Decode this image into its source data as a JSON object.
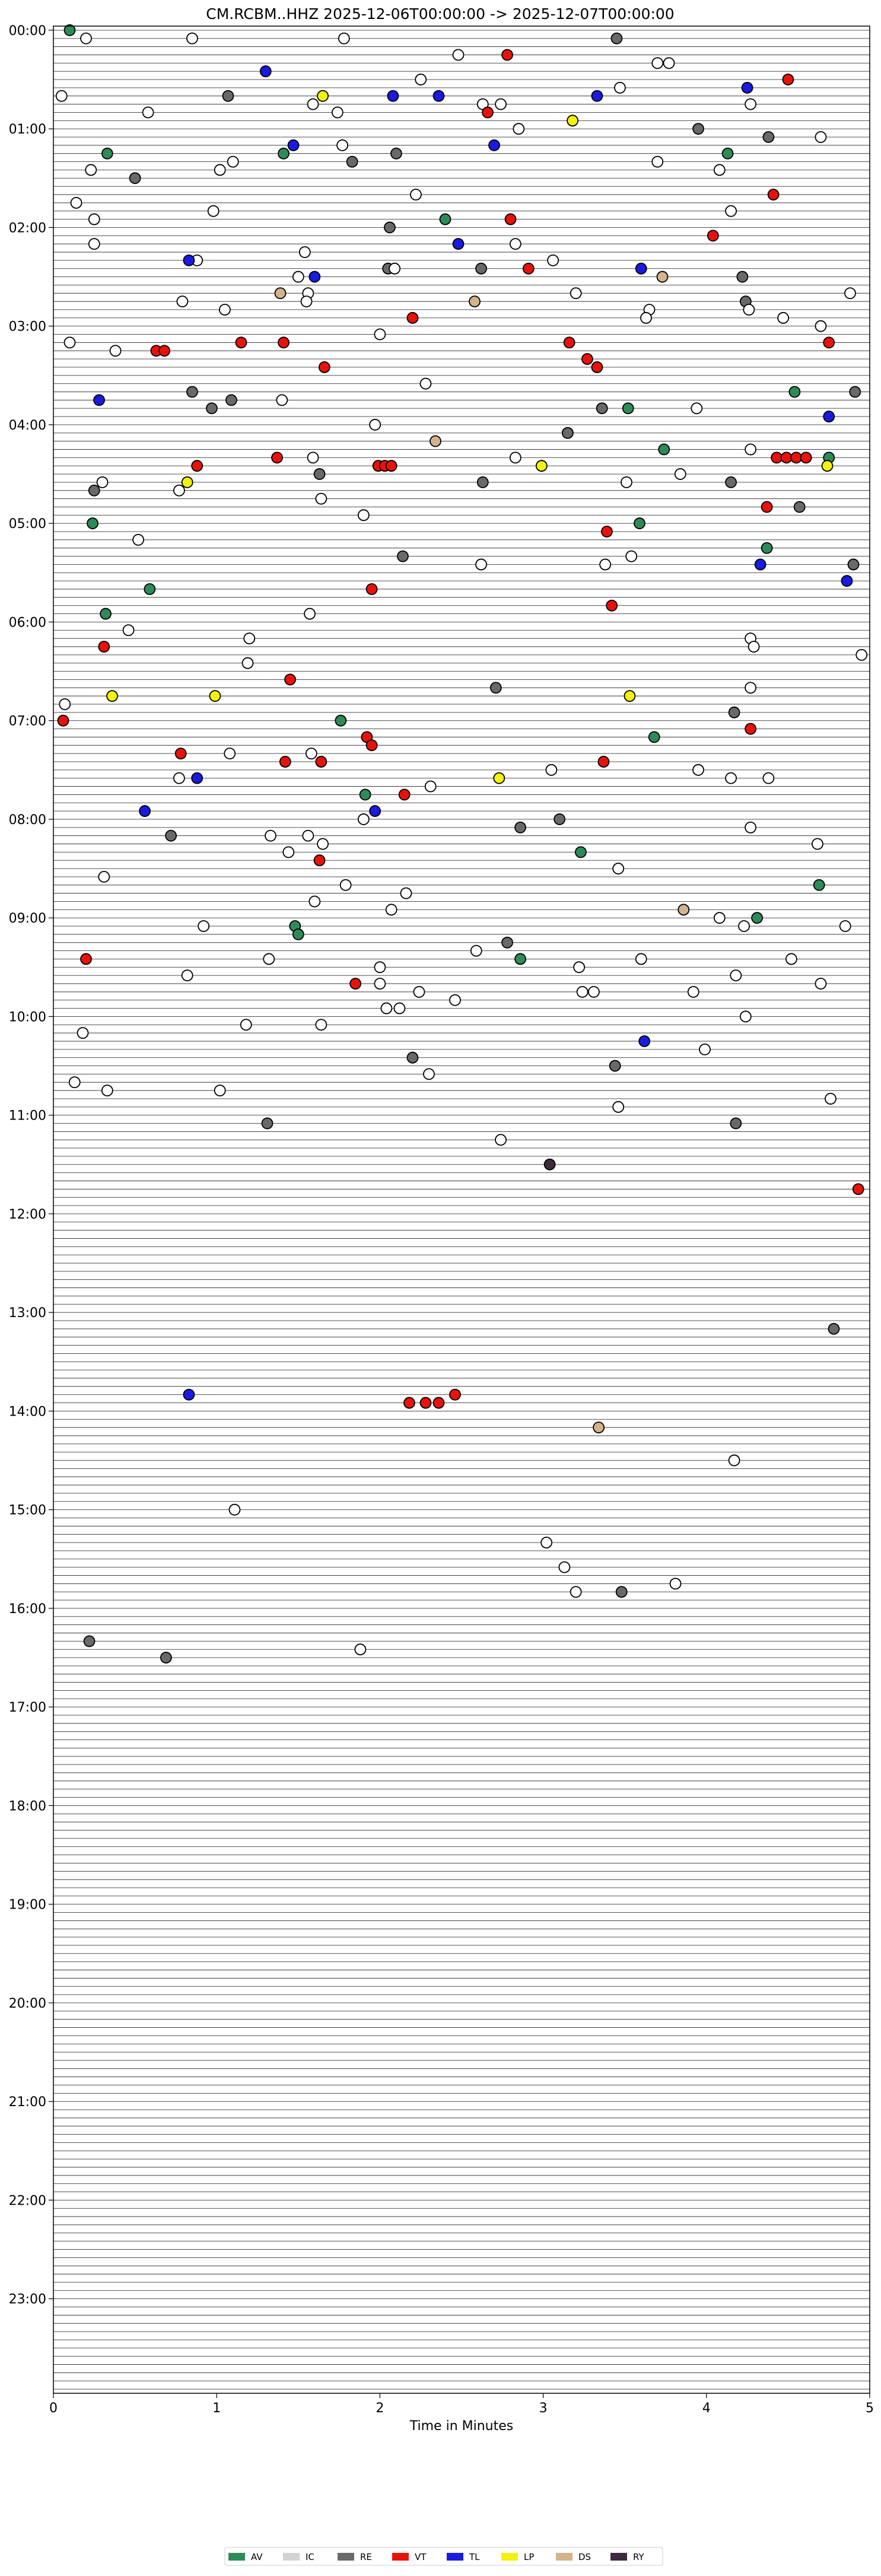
{
  "chart_data": {
    "type": "scatter",
    "title": "CM.RCBM..HHZ  2025-12-06T00:00:00 -> 2025-12-07T00:00:00",
    "xlabel": "Time in Minutes",
    "ylabel": "",
    "xlim": [
      0,
      5
    ],
    "x_ticks": [
      "0",
      "1",
      "2",
      "3",
      "4",
      "5"
    ],
    "y_ticks": [
      "00:00",
      "01:00",
      "02:00",
      "03:00",
      "04:00",
      "05:00",
      "06:00",
      "07:00",
      "08:00",
      "09:00",
      "10:00",
      "11:00",
      "12:00",
      "13:00",
      "14:00",
      "15:00",
      "16:00",
      "17:00",
      "18:00",
      "19:00",
      "20:00",
      "21:00",
      "22:00",
      "23:00"
    ],
    "rows_total": 288,
    "row_minutes": 5,
    "grid": false,
    "legend_position": "bottom-center",
    "legend": [
      {
        "code": "AV",
        "color": "#2e8b57"
      },
      {
        "code": "IC",
        "color": "#d3d3d3"
      },
      {
        "code": "RE",
        "color": "#696969"
      },
      {
        "code": "VT",
        "color": "#e8120c"
      },
      {
        "code": "TL",
        "color": "#1a1ae0"
      },
      {
        "code": "LP",
        "color": "#f2f20e"
      },
      {
        "code": "DS",
        "color": "#d2b48c"
      },
      {
        "code": "RY",
        "color": "#3d2c3e"
      }
    ],
    "event_default_color": "#ffffff",
    "events": [
      {
        "row": 0,
        "x": 0.1,
        "cls": "AV"
      },
      {
        "row": 1,
        "x": 0.2
      },
      {
        "row": 1,
        "x": 0.85
      },
      {
        "row": 1,
        "x": 1.78
      },
      {
        "row": 1,
        "x": 3.45,
        "cls": "RE"
      },
      {
        "row": 3,
        "x": 2.48
      },
      {
        "row": 3,
        "x": 2.78,
        "cls": "VT"
      },
      {
        "row": 4,
        "x": 3.7
      },
      {
        "row": 4,
        "x": 3.77
      },
      {
        "row": 5,
        "x": 1.3,
        "cls": "TL"
      },
      {
        "row": 6,
        "x": 2.25
      },
      {
        "row": 6,
        "x": 4.5,
        "cls": "VT"
      },
      {
        "row": 7,
        "x": 4.25,
        "cls": "TL"
      },
      {
        "row": 7,
        "x": 3.47
      },
      {
        "row": 8,
        "x": 0.05
      },
      {
        "row": 8,
        "x": 1.65,
        "cls": "LP"
      },
      {
        "row": 8,
        "x": 2.08,
        "cls": "TL"
      },
      {
        "row": 8,
        "x": 2.36,
        "cls": "TL"
      },
      {
        "row": 8,
        "x": 3.33,
        "cls": "TL"
      },
      {
        "row": 8,
        "x": 1.07,
        "cls": "RE"
      },
      {
        "row": 9,
        "x": 2.63
      },
      {
        "row": 9,
        "x": 2.74
      },
      {
        "row": 9,
        "x": 4.27
      },
      {
        "row": 9,
        "x": 1.59
      },
      {
        "row": 10,
        "x": 0.58
      },
      {
        "row": 10,
        "x": 1.74
      },
      {
        "row": 10,
        "x": 2.66,
        "cls": "VT"
      },
      {
        "row": 11,
        "x": 3.18,
        "cls": "LP"
      },
      {
        "row": 12,
        "x": 2.85
      },
      {
        "row": 12,
        "x": 3.95,
        "cls": "RE"
      },
      {
        "row": 13,
        "x": 4.38,
        "cls": "RE"
      },
      {
        "row": 13,
        "x": 4.7
      },
      {
        "row": 14,
        "x": 1.47,
        "cls": "TL"
      },
      {
        "row": 14,
        "x": 1.77
      },
      {
        "row": 14,
        "x": 2.7,
        "cls": "TL"
      },
      {
        "row": 15,
        "x": 0.33,
        "cls": "AV"
      },
      {
        "row": 15,
        "x": 1.41,
        "cls": "AV"
      },
      {
        "row": 15,
        "x": 2.1,
        "cls": "RE"
      },
      {
        "row": 15,
        "x": 4.13,
        "cls": "AV"
      },
      {
        "row": 16,
        "x": 1.1
      },
      {
        "row": 16,
        "x": 1.83,
        "cls": "RE"
      },
      {
        "row": 16,
        "x": 3.7
      },
      {
        "row": 17,
        "x": 0.23
      },
      {
        "row": 17,
        "x": 1.02
      },
      {
        "row": 17,
        "x": 4.08
      },
      {
        "row": 18,
        "x": 0.5,
        "cls": "RE"
      },
      {
        "row": 20,
        "x": 2.22
      },
      {
        "row": 20,
        "x": 4.41,
        "cls": "VT"
      },
      {
        "row": 21,
        "x": 0.14
      },
      {
        "row": 22,
        "x": 0.98
      },
      {
        "row": 22,
        "x": 4.15
      },
      {
        "row": 23,
        "x": 0.25
      },
      {
        "row": 23,
        "x": 2.4,
        "cls": "AV"
      },
      {
        "row": 23,
        "x": 2.8,
        "cls": "VT"
      },
      {
        "row": 24,
        "x": 2.06,
        "cls": "RE"
      },
      {
        "row": 25,
        "x": 4.04,
        "cls": "VT"
      },
      {
        "row": 26,
        "x": 0.25
      },
      {
        "row": 26,
        "x": 2.48,
        "cls": "TL"
      },
      {
        "row": 26,
        "x": 2.83
      },
      {
        "row": 27,
        "x": 1.54
      },
      {
        "row": 28,
        "x": 0.88
      },
      {
        "row": 28,
        "x": 0.83,
        "cls": "TL"
      },
      {
        "row": 28,
        "x": 3.06
      },
      {
        "row": 29,
        "x": 2.05,
        "cls": "RE"
      },
      {
        "row": 29,
        "x": 2.09
      },
      {
        "row": 29,
        "x": 2.62,
        "cls": "RE"
      },
      {
        "row": 29,
        "x": 2.91,
        "cls": "VT"
      },
      {
        "row": 29,
        "x": 3.6,
        "cls": "TL"
      },
      {
        "row": 30,
        "x": 1.6,
        "cls": "TL"
      },
      {
        "row": 30,
        "x": 1.5
      },
      {
        "row": 30,
        "x": 3.73,
        "cls": "DS"
      },
      {
        "row": 30,
        "x": 4.22,
        "cls": "RE"
      },
      {
        "row": 32,
        "x": 1.39,
        "cls": "DS"
      },
      {
        "row": 32,
        "x": 1.56
      },
      {
        "row": 32,
        "x": 3.2
      },
      {
        "row": 32,
        "x": 4.88
      },
      {
        "row": 33,
        "x": 0.79
      },
      {
        "row": 33,
        "x": 1.55
      },
      {
        "row": 33,
        "x": 2.58,
        "cls": "DS"
      },
      {
        "row": 33,
        "x": 4.24,
        "cls": "RE"
      },
      {
        "row": 34,
        "x": 4.26
      },
      {
        "row": 34,
        "x": 1.05
      },
      {
        "row": 34,
        "x": 3.65
      },
      {
        "row": 35,
        "x": 3.63
      },
      {
        "row": 35,
        "x": 2.2,
        "cls": "VT"
      },
      {
        "row": 35,
        "x": 4.47
      },
      {
        "row": 36,
        "x": 4.7
      },
      {
        "row": 37,
        "x": 2.0
      },
      {
        "row": 38,
        "x": 0.1
      },
      {
        "row": 38,
        "x": 1.15,
        "cls": "VT"
      },
      {
        "row": 38,
        "x": 1.41,
        "cls": "VT"
      },
      {
        "row": 38,
        "x": 3.16,
        "cls": "VT"
      },
      {
        "row": 38,
        "x": 4.75,
        "cls": "VT"
      },
      {
        "row": 39,
        "x": 0.63,
        "cls": "VT"
      },
      {
        "row": 39,
        "x": 0.68,
        "cls": "VT"
      },
      {
        "row": 39,
        "x": 0.38
      },
      {
        "row": 40,
        "x": 3.27,
        "cls": "VT"
      },
      {
        "row": 41,
        "x": 3.33,
        "cls": "VT"
      },
      {
        "row": 41,
        "x": 1.66,
        "cls": "VT"
      },
      {
        "row": 43,
        "x": 2.28
      },
      {
        "row": 44,
        "x": 0.85,
        "cls": "RE"
      },
      {
        "row": 44,
        "x": 4.54,
        "cls": "AV"
      },
      {
        "row": 44,
        "x": 4.91,
        "cls": "RE"
      },
      {
        "row": 45,
        "x": 0.28,
        "cls": "TL"
      },
      {
        "row": 45,
        "x": 1.4
      },
      {
        "row": 45,
        "x": 1.09,
        "cls": "RE"
      },
      {
        "row": 46,
        "x": 0.97,
        "cls": "RE"
      },
      {
        "row": 46,
        "x": 3.36,
        "cls": "RE"
      },
      {
        "row": 46,
        "x": 3.52,
        "cls": "AV"
      },
      {
        "row": 46,
        "x": 3.94
      },
      {
        "row": 47,
        "x": 4.75,
        "cls": "TL"
      },
      {
        "row": 48,
        "x": 1.97
      },
      {
        "row": 49,
        "x": 3.15,
        "cls": "RE"
      },
      {
        "row": 49,
        "x": 3.15,
        "cls": "RE"
      },
      {
        "row": 50,
        "x": 2.34,
        "cls": "DS"
      },
      {
        "row": 51,
        "x": 3.74,
        "cls": "AV"
      },
      {
        "row": 51,
        "x": 4.27
      },
      {
        "row": 52,
        "x": 1.59
      },
      {
        "row": 52,
        "x": 1.37,
        "cls": "VT"
      },
      {
        "row": 52,
        "x": 2.83
      },
      {
        "row": 52,
        "x": 4.43,
        "cls": "VT"
      },
      {
        "row": 52,
        "x": 4.49,
        "cls": "VT"
      },
      {
        "row": 52,
        "x": 4.55,
        "cls": "VT"
      },
      {
        "row": 52,
        "x": 4.61,
        "cls": "VT"
      },
      {
        "row": 52,
        "x": 4.75,
        "cls": "AV"
      },
      {
        "row": 53,
        "x": 0.88,
        "cls": "VT"
      },
      {
        "row": 53,
        "x": 1.99,
        "cls": "VT"
      },
      {
        "row": 53,
        "x": 2.03,
        "cls": "VT"
      },
      {
        "row": 53,
        "x": 2.07,
        "cls": "VT"
      },
      {
        "row": 53,
        "x": 2.99,
        "cls": "LP"
      },
      {
        "row": 53,
        "x": 4.74,
        "cls": "LP"
      },
      {
        "row": 54,
        "x": 1.63,
        "cls": "RE"
      },
      {
        "row": 54,
        "x": 3.84
      },
      {
        "row": 55,
        "x": 0.3
      },
      {
        "row": 55,
        "x": 0.82,
        "cls": "LP"
      },
      {
        "row": 55,
        "x": 2.63,
        "cls": "RE"
      },
      {
        "row": 55,
        "x": 3.51
      },
      {
        "row": 55,
        "x": 4.15,
        "cls": "RE"
      },
      {
        "row": 56,
        "x": 0.25,
        "cls": "RE"
      },
      {
        "row": 56,
        "x": 0.77
      },
      {
        "row": 57,
        "x": 1.64
      },
      {
        "row": 58,
        "x": 4.57,
        "cls": "RE"
      },
      {
        "row": 58,
        "x": 4.37,
        "cls": "VT"
      },
      {
        "row": 59,
        "x": 1.9
      },
      {
        "row": 60,
        "x": 0.24,
        "cls": "AV"
      },
      {
        "row": 60,
        "x": 3.59,
        "cls": "AV"
      },
      {
        "row": 61,
        "x": 3.39,
        "cls": "VT"
      },
      {
        "row": 62,
        "x": 0.52
      },
      {
        "row": 63,
        "x": 4.37,
        "cls": "AV"
      },
      {
        "row": 64,
        "x": 2.14,
        "cls": "RE"
      },
      {
        "row": 64,
        "x": 3.54
      },
      {
        "row": 65,
        "x": 2.62
      },
      {
        "row": 65,
        "x": 3.38
      },
      {
        "row": 65,
        "x": 4.9,
        "cls": "RE"
      },
      {
        "row": 65,
        "x": 4.33,
        "cls": "TL"
      },
      {
        "row": 67,
        "x": 4.86,
        "cls": "TL"
      },
      {
        "row": 68,
        "x": 1.95,
        "cls": "VT"
      },
      {
        "row": 68,
        "x": 0.59,
        "cls": "AV"
      },
      {
        "row": 70,
        "x": 3.42,
        "cls": "VT"
      },
      {
        "row": 71,
        "x": 0.32,
        "cls": "AV"
      },
      {
        "row": 71,
        "x": 1.57
      },
      {
        "row": 73,
        "x": 0.46
      },
      {
        "row": 74,
        "x": 1.2
      },
      {
        "row": 74,
        "x": 4.27
      },
      {
        "row": 75,
        "x": 4.29
      },
      {
        "row": 75,
        "x": 0.31,
        "cls": "VT"
      },
      {
        "row": 76,
        "x": 4.95
      },
      {
        "row": 77,
        "x": 1.19
      },
      {
        "row": 79,
        "x": 1.45,
        "cls": "VT"
      },
      {
        "row": 80,
        "x": 2.71,
        "cls": "RE"
      },
      {
        "row": 80,
        "x": 4.27
      },
      {
        "row": 81,
        "x": 0.36,
        "cls": "LP"
      },
      {
        "row": 81,
        "x": 0.99,
        "cls": "LP"
      },
      {
        "row": 81,
        "x": 3.53,
        "cls": "LP"
      },
      {
        "row": 82,
        "x": 0.07
      },
      {
        "row": 83,
        "x": 4.17,
        "cls": "RE"
      },
      {
        "row": 84,
        "x": 1.76,
        "cls": "AV"
      },
      {
        "row": 84,
        "x": 0.06,
        "cls": "VT"
      },
      {
        "row": 85,
        "x": 4.27,
        "cls": "VT"
      },
      {
        "row": 86,
        "x": 1.92,
        "cls": "VT"
      },
      {
        "row": 86,
        "x": 3.68,
        "cls": "AV"
      },
      {
        "row": 87,
        "x": 1.95,
        "cls": "VT"
      },
      {
        "row": 88,
        "x": 0.78,
        "cls": "VT"
      },
      {
        "row": 88,
        "x": 1.08
      },
      {
        "row": 88,
        "x": 1.58
      },
      {
        "row": 89,
        "x": 1.42,
        "cls": "VT"
      },
      {
        "row": 89,
        "x": 1.64,
        "cls": "VT"
      },
      {
        "row": 89,
        "x": 3.37,
        "cls": "VT"
      },
      {
        "row": 90,
        "x": 3.05
      },
      {
        "row": 90,
        "x": 3.95
      },
      {
        "row": 91,
        "x": 0.77
      },
      {
        "row": 91,
        "x": 0.88,
        "cls": "TL"
      },
      {
        "row": 91,
        "x": 2.73,
        "cls": "LP"
      },
      {
        "row": 91,
        "x": 4.15
      },
      {
        "row": 91,
        "x": 4.38
      },
      {
        "row": 92,
        "x": 2.31
      },
      {
        "row": 93,
        "x": 1.91,
        "cls": "AV"
      },
      {
        "row": 93,
        "x": 2.15,
        "cls": "VT"
      },
      {
        "row": 95,
        "x": 0.56,
        "cls": "TL"
      },
      {
        "row": 95,
        "x": 1.97,
        "cls": "TL"
      },
      {
        "row": 96,
        "x": 1.9
      },
      {
        "row": 96,
        "x": 3.1,
        "cls": "RE"
      },
      {
        "row": 97,
        "x": 4.27
      },
      {
        "row": 97,
        "x": 2.86,
        "cls": "RE"
      },
      {
        "row": 98,
        "x": 0.72,
        "cls": "RE"
      },
      {
        "row": 98,
        "x": 1.33
      },
      {
        "row": 98,
        "x": 1.56
      },
      {
        "row": 99,
        "x": 1.65
      },
      {
        "row": 99,
        "x": 4.68
      },
      {
        "row": 100,
        "x": 1.44
      },
      {
        "row": 100,
        "x": 3.23,
        "cls": "AV"
      },
      {
        "row": 101,
        "x": 1.63,
        "cls": "VT"
      },
      {
        "row": 102,
        "x": 3.46
      },
      {
        "row": 103,
        "x": 0.31
      },
      {
        "row": 104,
        "x": 1.79
      },
      {
        "row": 104,
        "x": 4.69,
        "cls": "AV"
      },
      {
        "row": 105,
        "x": 2.16
      },
      {
        "row": 106,
        "x": 1.6
      },
      {
        "row": 107,
        "x": 2.07
      },
      {
        "row": 107,
        "x": 3.86,
        "cls": "DS"
      },
      {
        "row": 108,
        "x": 4.31,
        "cls": "AV"
      },
      {
        "row": 108,
        "x": 4.08
      },
      {
        "row": 109,
        "x": 0.92
      },
      {
        "row": 109,
        "x": 1.48,
        "cls": "AV"
      },
      {
        "row": 109,
        "x": 4.23
      },
      {
        "row": 109,
        "x": 4.85
      },
      {
        "row": 110,
        "x": 1.5,
        "cls": "AV"
      },
      {
        "row": 111,
        "x": 2.78,
        "cls": "RE"
      },
      {
        "row": 112,
        "x": 2.59
      },
      {
        "row": 113,
        "x": 1.32
      },
      {
        "row": 113,
        "x": 0.2,
        "cls": "VT"
      },
      {
        "row": 113,
        "x": 2.86,
        "cls": "AV"
      },
      {
        "row": 113,
        "x": 3.6
      },
      {
        "row": 113,
        "x": 4.52
      },
      {
        "row": 114,
        "x": 2.0
      },
      {
        "row": 114,
        "x": 3.22
      },
      {
        "row": 115,
        "x": 0.82
      },
      {
        "row": 115,
        "x": 4.18
      },
      {
        "row": 116,
        "x": 1.85,
        "cls": "VT"
      },
      {
        "row": 116,
        "x": 2.0
      },
      {
        "row": 116,
        "x": 4.7
      },
      {
        "row": 117,
        "x": 2.24
      },
      {
        "row": 117,
        "x": 3.24
      },
      {
        "row": 117,
        "x": 3.31
      },
      {
        "row": 117,
        "x": 3.92
      },
      {
        "row": 118,
        "x": 2.46
      },
      {
        "row": 119,
        "x": 2.04
      },
      {
        "row": 119,
        "x": 2.12
      },
      {
        "row": 120,
        "x": 4.24
      },
      {
        "row": 121,
        "x": 1.18
      },
      {
        "row": 121,
        "x": 1.64
      },
      {
        "row": 122,
        "x": 0.18
      },
      {
        "row": 123,
        "x": 3.62,
        "cls": "TL"
      },
      {
        "row": 124,
        "x": 3.99
      },
      {
        "row": 125,
        "x": 2.2,
        "cls": "RE"
      },
      {
        "row": 126,
        "x": 3.44,
        "cls": "RE"
      },
      {
        "row": 127,
        "x": 2.3
      },
      {
        "row": 128,
        "x": 0.13
      },
      {
        "row": 129,
        "x": 0.33
      },
      {
        "row": 129,
        "x": 1.02
      },
      {
        "row": 130,
        "x": 4.76
      },
      {
        "row": 131,
        "x": 3.46
      },
      {
        "row": 133,
        "x": 1.31,
        "cls": "RE"
      },
      {
        "row": 133,
        "x": 4.18,
        "cls": "RE"
      },
      {
        "row": 135,
        "x": 2.74
      },
      {
        "row": 138,
        "x": 3.04,
        "cls": "RY"
      },
      {
        "row": 141,
        "x": 4.93,
        "cls": "VT"
      },
      {
        "row": 158,
        "x": 4.78,
        "cls": "RE"
      },
      {
        "row": 166,
        "x": 0.83,
        "cls": "TL"
      },
      {
        "row": 166,
        "x": 2.46,
        "cls": "VT"
      },
      {
        "row": 167,
        "x": 2.18,
        "cls": "VT"
      },
      {
        "row": 167,
        "x": 2.28,
        "cls": "VT"
      },
      {
        "row": 167,
        "x": 2.36,
        "cls": "VT"
      },
      {
        "row": 170,
        "x": 3.34,
        "cls": "DS"
      },
      {
        "row": 174,
        "x": 4.17
      },
      {
        "row": 180,
        "x": 1.11
      },
      {
        "row": 184,
        "x": 3.02
      },
      {
        "row": 187,
        "x": 3.13
      },
      {
        "row": 189,
        "x": 3.81
      },
      {
        "row": 190,
        "x": 3.2
      },
      {
        "row": 190,
        "x": 3.48,
        "cls": "RE"
      },
      {
        "row": 196,
        "x": 0.22,
        "cls": "RE"
      },
      {
        "row": 197,
        "x": 1.88
      },
      {
        "row": 198,
        "x": 0.69,
        "cls": "RE"
      }
    ]
  }
}
